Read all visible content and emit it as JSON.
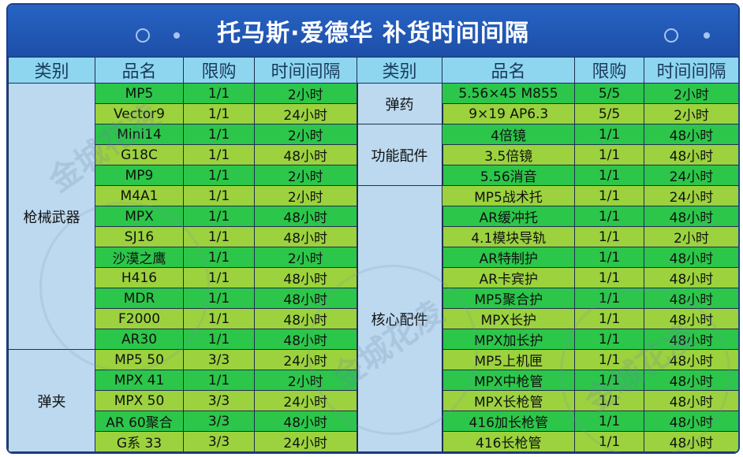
{
  "title": "托马斯·爱德华  补货时间间隔",
  "headers": [
    "类别",
    "品名",
    "限购",
    "时间间隔",
    "类别",
    "品名",
    "限购",
    "时间间隔"
  ],
  "watermark": "金城花凌",
  "left_groups": [
    {
      "category": "枪械武器",
      "rows": [
        {
          "name": "MP5",
          "limit": "1/1",
          "interval": "2小时"
        },
        {
          "name": "Vector9",
          "limit": "1/1",
          "interval": "24小时"
        },
        {
          "name": "Mini14",
          "limit": "1/1",
          "interval": "2小时"
        },
        {
          "name": "G18C",
          "limit": "1/1",
          "interval": "48小时"
        },
        {
          "name": "MP9",
          "limit": "1/1",
          "interval": "2小时"
        },
        {
          "name": "M4A1",
          "limit": "1/1",
          "interval": "2小时"
        },
        {
          "name": "MPX",
          "limit": "1/1",
          "interval": "48小时"
        },
        {
          "name": "SJ16",
          "limit": "1/1",
          "interval": "48小时"
        },
        {
          "name": "沙漠之鹰",
          "limit": "1/1",
          "interval": "2小时"
        },
        {
          "name": "H416",
          "limit": "1/1",
          "interval": "48小时"
        },
        {
          "name": "MDR",
          "limit": "1/1",
          "interval": "48小时"
        },
        {
          "name": "F2000",
          "limit": "1/1",
          "interval": "48小时"
        },
        {
          "name": "AR30",
          "limit": "1/1",
          "interval": "48小时"
        }
      ]
    },
    {
      "category": "弹夹",
      "rows": [
        {
          "name": "MP5 50",
          "limit": "3/3",
          "interval": "24小时"
        },
        {
          "name": "MPX 41",
          "limit": "1/1",
          "interval": "2小时"
        },
        {
          "name": "MPX 50",
          "limit": "3/3",
          "interval": "24小时"
        },
        {
          "name": "AR 60聚合",
          "limit": "3/3",
          "interval": "48小时"
        },
        {
          "name": "G系 33",
          "limit": "3/3",
          "interval": "24小时"
        }
      ]
    }
  ],
  "right_groups": [
    {
      "category": "弹药",
      "rows": [
        {
          "name": "5.56×45 M855",
          "limit": "5/5",
          "interval": "2小时"
        },
        {
          "name": "9×19 AP6.3",
          "limit": "5/5",
          "interval": "2小时"
        }
      ]
    },
    {
      "category": "功能配件",
      "rows": [
        {
          "name": "4倍镜",
          "limit": "1/1",
          "interval": "48小时"
        },
        {
          "name": "3.5倍镜",
          "limit": "1/1",
          "interval": "48小时"
        },
        {
          "name": "5.56消音",
          "limit": "1/1",
          "interval": "24小时"
        }
      ]
    },
    {
      "category": "核心配件",
      "rows": [
        {
          "name": "MP5战术托",
          "limit": "1/1",
          "interval": "24小时"
        },
        {
          "name": "AR缓冲托",
          "limit": "1/1",
          "interval": "48小时"
        },
        {
          "name": "4.1模块导轨",
          "limit": "1/1",
          "interval": "2小时"
        },
        {
          "name": "AR特制护",
          "limit": "1/1",
          "interval": "48小时"
        },
        {
          "name": "AR卡宾护",
          "limit": "1/1",
          "interval": "48小时"
        },
        {
          "name": "MP5聚合护",
          "limit": "1/1",
          "interval": "48小时"
        },
        {
          "name": "MPX长护",
          "limit": "1/1",
          "interval": "48小时"
        },
        {
          "name": "MPX加长护",
          "limit": "1/1",
          "interval": "48小时"
        },
        {
          "name": "MP5上机匣",
          "limit": "1/1",
          "interval": "48小时"
        },
        {
          "name": "MPX中枪管",
          "limit": "1/1",
          "interval": "48小时"
        },
        {
          "name": "MPX长枪管",
          "limit": "1/1",
          "interval": "48小时"
        },
        {
          "name": "416加长枪管",
          "limit": "1/1",
          "interval": "48小时"
        },
        {
          "name": "416长枪管",
          "limit": "1/1",
          "interval": "48小时"
        }
      ]
    }
  ]
}
